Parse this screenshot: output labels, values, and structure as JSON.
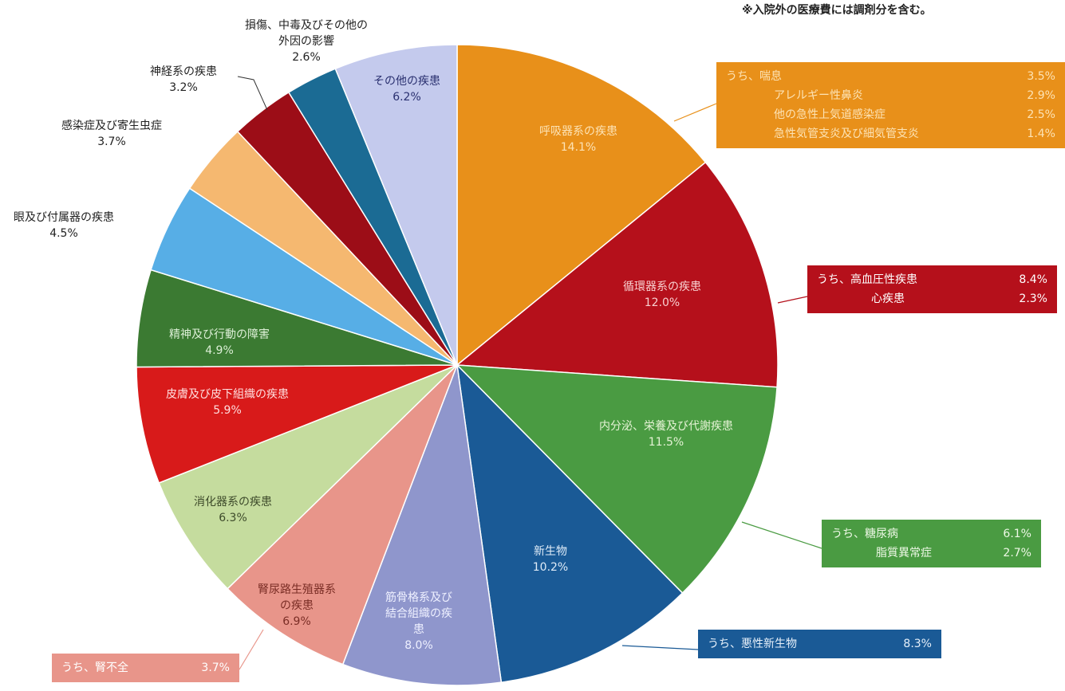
{
  "chart_data": {
    "type": "pie",
    "note": "※入院外の医療費には調剤分を含む。",
    "categories": [
      "呼吸器系の疾患",
      "循環器系の疾患",
      "内分泌、栄養及び代謝疾患",
      "新生物",
      "筋骨格系及び\n結合組織の疾\n患",
      "腎尿路生殖器系\nの疾患",
      "消化器系の疾患",
      "皮膚及び皮下組織の疾患",
      "精神及び行動の障害",
      "眼及び付属器の疾患",
      "感染症及び寄生虫症",
      "神経系の疾患",
      "損傷、中毒及びその他の\n外因の影響",
      "その他の疾患"
    ],
    "values": [
      14.1,
      12.0,
      11.5,
      10.2,
      8.0,
      6.9,
      6.3,
      5.9,
      4.9,
      4.5,
      3.7,
      3.2,
      2.6,
      6.2
    ],
    "value_labels": [
      "14.1%",
      "12.0%",
      "11.5%",
      "10.2%",
      "8.0%",
      "6.9%",
      "6.3%",
      "5.9%",
      "4.9%",
      "4.5%",
      "3.7%",
      "3.2%",
      "2.6%",
      "6.2%"
    ],
    "colors": [
      "#e8901a",
      "#b5101b",
      "#4a9b42",
      "#1a5a96",
      "#8f96cc",
      "#e8958a",
      "#c5dc9e",
      "#d81a1a",
      "#3b7a32",
      "#57aee6",
      "#f5b870",
      "#9c0d17",
      "#1b6b94",
      "#c4caed"
    ],
    "callouts": [
      {
        "color": "#e8901a",
        "items": [
          {
            "name": "うち、喘息",
            "value": 3.5,
            "value_label": "3.5%"
          },
          {
            "name": "アレルギー性鼻炎",
            "value": 2.9,
            "value_label": "2.9%"
          },
          {
            "name": "他の急性上気道感染症",
            "value": 2.5,
            "value_label": "2.5%"
          },
          {
            "name": "急性気管支炎及び細気管支炎",
            "value": 1.4,
            "value_label": "1.4%"
          }
        ]
      },
      {
        "color": "#b5101b",
        "items": [
          {
            "name": "うち、高血圧性疾患",
            "value": 8.4,
            "value_label": "8.4%"
          },
          {
            "name": "心疾患",
            "value": 2.3,
            "value_label": "2.3%"
          }
        ]
      },
      {
        "color": "#4a9b42",
        "items": [
          {
            "name": "うち、糖尿病",
            "value": 6.1,
            "value_label": "6.1%"
          },
          {
            "name": "脂質異常症",
            "value": 2.7,
            "value_label": "2.7%"
          }
        ]
      },
      {
        "color": "#1a5a96",
        "items": [
          {
            "name": "うち、悪性新生物",
            "value": 8.3,
            "value_label": "8.3%"
          }
        ]
      },
      {
        "color": "#e8958a",
        "items": [
          {
            "name": "うち、腎不全",
            "value": 3.7,
            "value_label": "3.7%"
          }
        ]
      }
    ]
  }
}
